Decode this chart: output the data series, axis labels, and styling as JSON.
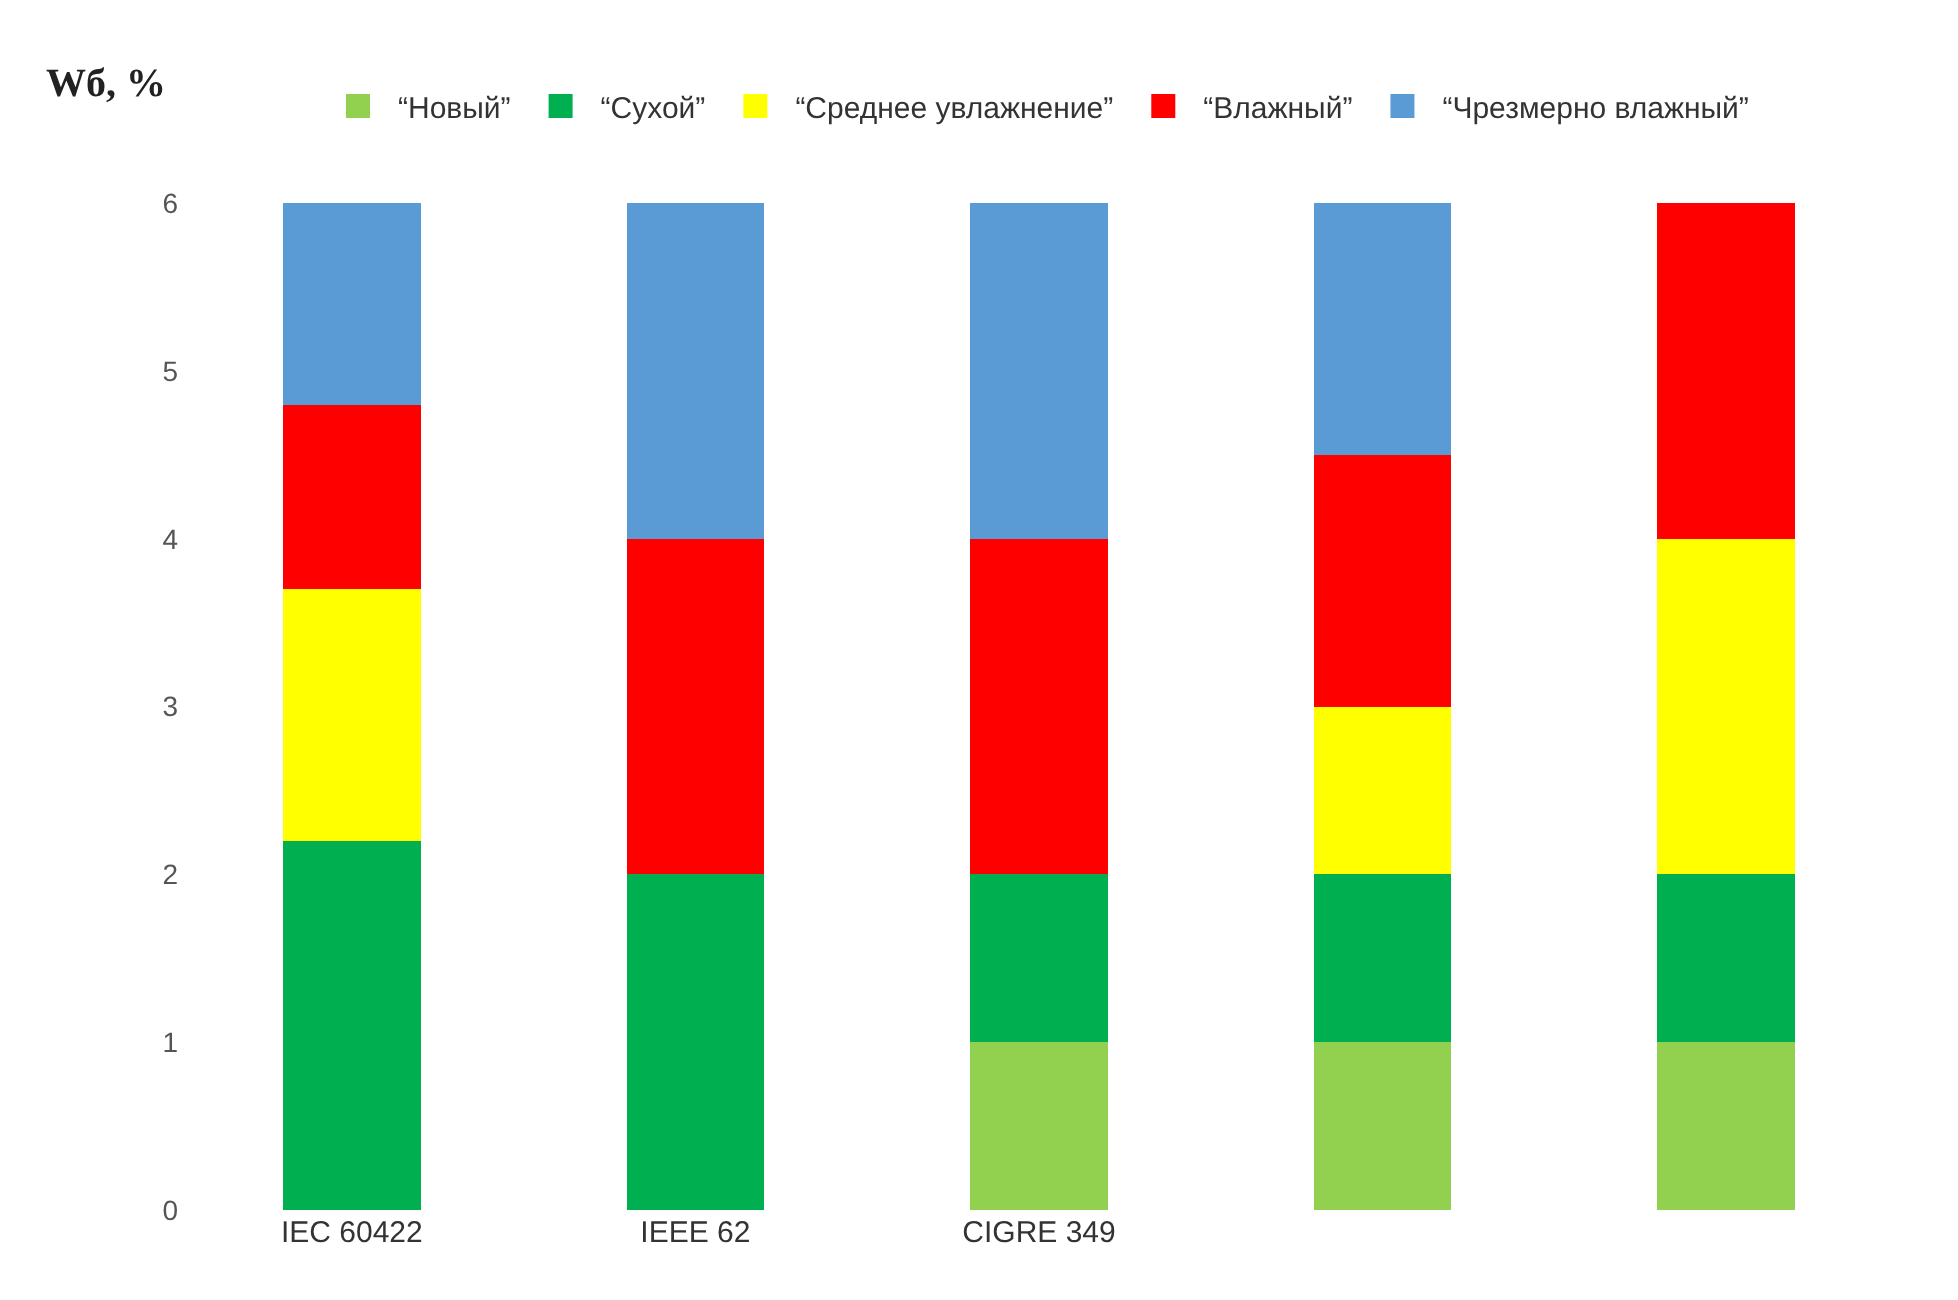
{
  "chart_data": {
    "type": "bar",
    "stacked": true,
    "ylabel": "Wб, %",
    "categories": [
      "IEC 60422",
      "IEEE 62",
      "CIGRE 349",
      null,
      null
    ],
    "series": [
      {
        "name": "“Новый”",
        "color": "#92d050",
        "values": [
          0,
          0,
          1,
          1,
          1
        ]
      },
      {
        "name": "“Сухой”",
        "color": "#00b050",
        "values": [
          2.2,
          2,
          1,
          1,
          1
        ]
      },
      {
        "name": "“Среднее увлажнение”",
        "color": "#ffff00",
        "values": [
          1.5,
          0,
          0,
          1,
          2
        ]
      },
      {
        "name": "“Влажный”",
        "color": "#ff0000",
        "values": [
          1.1,
          2,
          2,
          1.5,
          2
        ]
      },
      {
        "name": "“Чрезмерно влажный”",
        "color": "#5b9bd5",
        "values": [
          1.2,
          2,
          2,
          1.5,
          0
        ]
      }
    ],
    "ylim": [
      0,
      6.02
    ],
    "yticks": [
      0,
      1,
      2,
      3,
      4,
      5,
      6
    ],
    "legend": "top"
  }
}
